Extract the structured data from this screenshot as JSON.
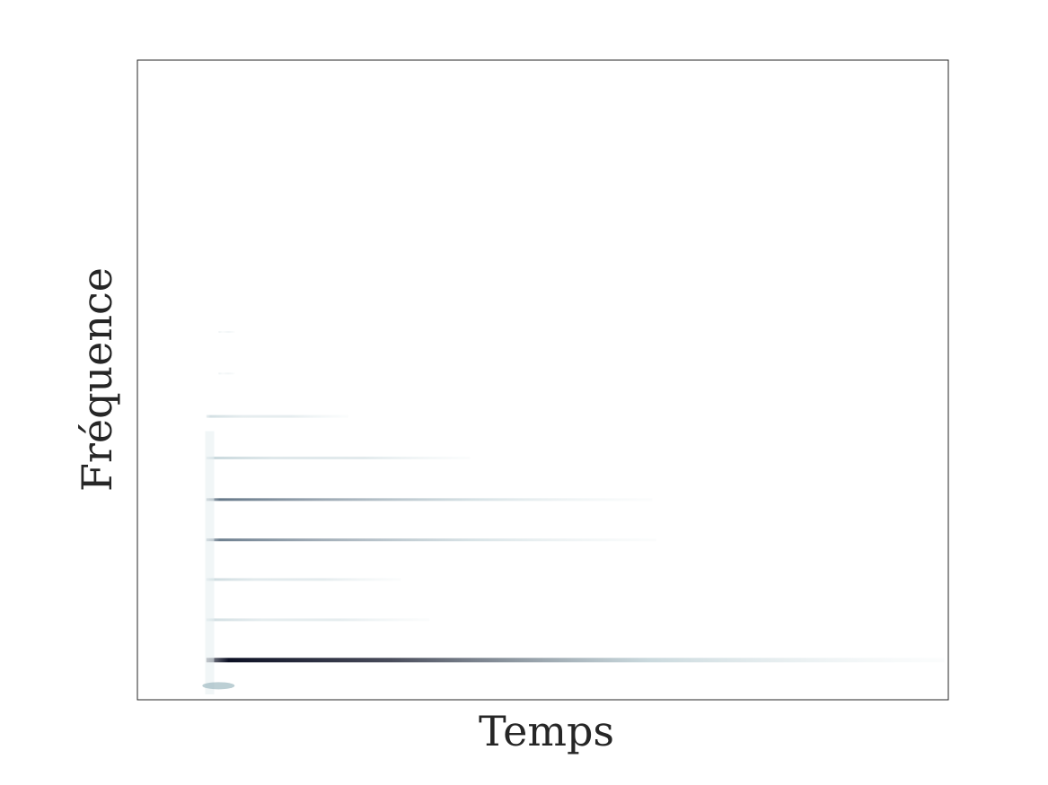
{
  "chart_data": {
    "type": "heatmap",
    "title": "",
    "xlabel": "Temps",
    "ylabel": "Fréquence",
    "xticks": [],
    "yticks": [],
    "grid": false,
    "colormap": [
      "#ffffff",
      "#e6eff0",
      "#9fbac2",
      "#3f566b",
      "#0c1024"
    ],
    "xlim": [
      0,
      1
    ],
    "ylim": [
      0,
      1
    ],
    "series": [
      {
        "frequency": 0.062,
        "start": 0.085,
        "end": 0.995,
        "peak": 1.0
      },
      {
        "frequency": 0.125,
        "start": 0.085,
        "end": 0.36,
        "peak": 0.35
      },
      {
        "frequency": 0.188,
        "start": 0.085,
        "end": 0.325,
        "peak": 0.4
      },
      {
        "frequency": 0.25,
        "start": 0.085,
        "end": 0.64,
        "peak": 0.65
      },
      {
        "frequency": 0.313,
        "start": 0.085,
        "end": 0.635,
        "peak": 0.7
      },
      {
        "frequency": 0.378,
        "start": 0.085,
        "end": 0.41,
        "peak": 0.45
      },
      {
        "frequency": 0.443,
        "start": 0.085,
        "end": 0.26,
        "peak": 0.35
      },
      {
        "frequency": 0.51,
        "start": 0.1,
        "end": 0.12,
        "peak": 0.08
      },
      {
        "frequency": 0.575,
        "start": 0.1,
        "end": 0.12,
        "peak": 0.06
      }
    ]
  }
}
